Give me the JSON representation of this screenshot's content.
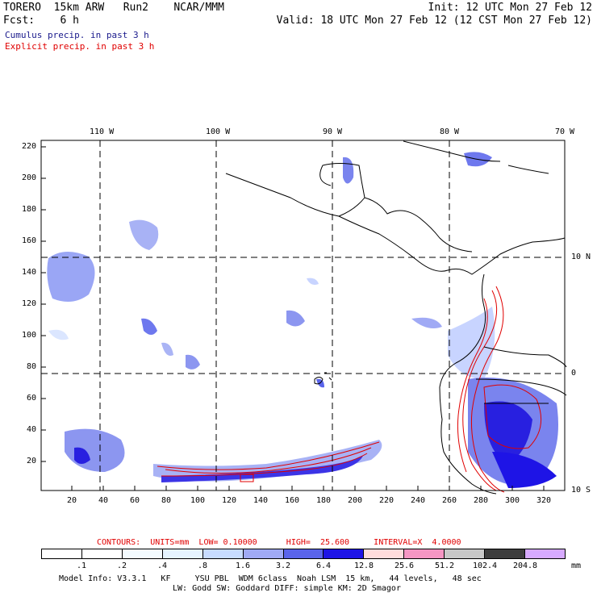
{
  "header": {
    "line1_left": "TORERO  15km ARW   Run2    NCAR/MMM",
    "line1_right": "Init: 12 UTC Mon 27 Feb 12",
    "line2_left": "Fcst:    6 h",
    "line2_right": "Valid: 18 UTC Mon 27 Feb 12 (12 CST Mon 27 Feb 12)",
    "legend_cumulus": "Cumulus precip. in past 3 h",
    "legend_explicit": "Explicit precip. in past 3 h",
    "cumulus_color": "#1a1a8c",
    "explicit_color": "#e00000"
  },
  "map": {
    "lon_labels": [
      "110 W",
      "100 W",
      "90 W",
      "80 W",
      "70 W"
    ],
    "lat_labels": [
      "10 N",
      "0",
      "10 S"
    ],
    "y_ticks": [
      "220",
      "200",
      "180",
      "160",
      "140",
      "120",
      "100",
      "80",
      "60",
      "40",
      "20"
    ],
    "x_ticks": [
      "20",
      "40",
      "60",
      "80",
      "100",
      "120",
      "140",
      "160",
      "180",
      "200",
      "220",
      "240",
      "260",
      "280",
      "300",
      "320"
    ]
  },
  "contours": {
    "text": "CONTOURS:  UNITS=mm  LOW= 0.10000      HIGH=  25.600     INTERVAL=X  4.0000",
    "color": "#e00000"
  },
  "colorbar": {
    "colors": [
      "#ffffff",
      "#ffffff",
      "#f4fbff",
      "#e6f4ff",
      "#c8dcff",
      "#a0aaf5",
      "#5a64eb",
      "#1e14e6",
      "#ffdcdc",
      "#f596c3",
      "#c8c8c8",
      "#3c3c3c",
      "#d7aaff"
    ],
    "labels": [
      ".1",
      ".2",
      ".4",
      ".8",
      "1.6",
      "3.2",
      "6.4",
      "12.8",
      "25.6",
      "51.2",
      "102.4",
      "204.8"
    ],
    "units": "mm"
  },
  "footer": {
    "line1": "Model Info: V3.3.1   KF     YSU PBL  WDM 6class  Noah LSM  15 km,   44 levels,   48 sec",
    "line2": "LW: Godd SW: Goddard DIFF: simple KM: 2D Smagor"
  }
}
